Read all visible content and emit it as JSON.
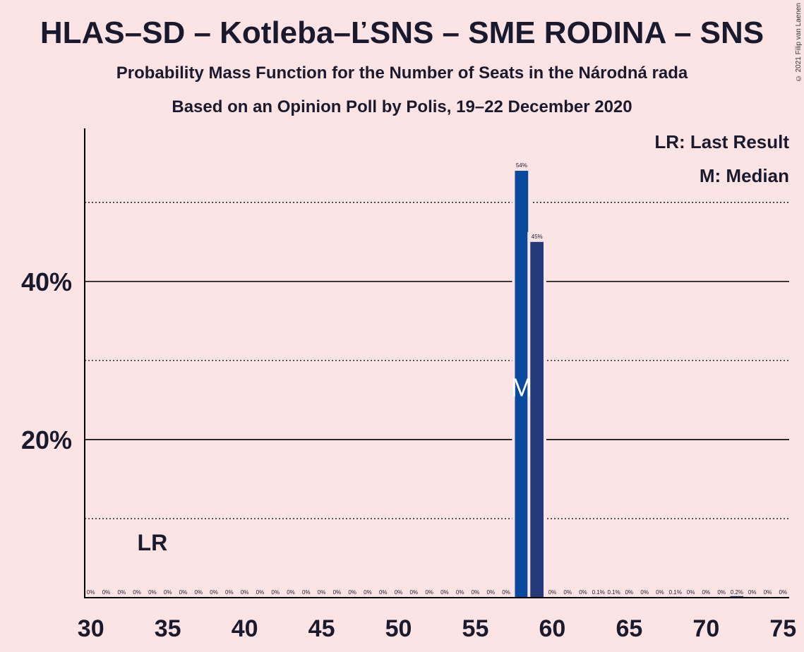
{
  "header": {
    "title": "HLAS–SD – Kotleba–ĽSNS – SME RODINA – SNS",
    "subtitle": "Probability Mass Function for the Number of Seats in the Národná rada",
    "subtitle2": "Based on an Opinion Poll by Polis, 19–22 December 2020",
    "copyright": "© 2021 Filip van Laenen"
  },
  "legend": {
    "lr": "LR: Last Result",
    "m": "M: Median"
  },
  "colors": {
    "background": "#fde4e4",
    "bar_primary": "#0a4a9e",
    "bar_secondary": "#253a78",
    "text": "#1a1a2e"
  },
  "chart_data": {
    "type": "bar",
    "x_label_ticks": [
      30,
      35,
      40,
      45,
      50,
      55,
      60,
      65,
      70,
      75
    ],
    "y_ticks": [
      {
        "value": 20,
        "label": "20%"
      },
      {
        "value": 40,
        "label": "40%"
      }
    ],
    "y_minor_gridlines": [
      10,
      30,
      50
    ],
    "ylim": [
      0,
      59
    ],
    "xlim": [
      29.6,
      75.4
    ],
    "last_result_seat": 34,
    "last_result_label": "LR",
    "median_seat": 58,
    "median_label": "M",
    "bars": [
      {
        "x": 30,
        "value": 0,
        "label": "0%"
      },
      {
        "x": 31,
        "value": 0,
        "label": "0%"
      },
      {
        "x": 32,
        "value": 0,
        "label": "0%"
      },
      {
        "x": 33,
        "value": 0,
        "label": "0%"
      },
      {
        "x": 34,
        "value": 0,
        "label": "0%"
      },
      {
        "x": 35,
        "value": 0,
        "label": "0%"
      },
      {
        "x": 36,
        "value": 0,
        "label": "0%"
      },
      {
        "x": 37,
        "value": 0,
        "label": "0%"
      },
      {
        "x": 38,
        "value": 0,
        "label": "0%"
      },
      {
        "x": 39,
        "value": 0,
        "label": "0%"
      },
      {
        "x": 40,
        "value": 0,
        "label": "0%"
      },
      {
        "x": 41,
        "value": 0,
        "label": "0%"
      },
      {
        "x": 42,
        "value": 0,
        "label": "0%"
      },
      {
        "x": 43,
        "value": 0,
        "label": "0%"
      },
      {
        "x": 44,
        "value": 0,
        "label": "0%"
      },
      {
        "x": 45,
        "value": 0,
        "label": "0%"
      },
      {
        "x": 46,
        "value": 0,
        "label": "0%"
      },
      {
        "x": 47,
        "value": 0,
        "label": "0%"
      },
      {
        "x": 48,
        "value": 0,
        "label": "0%"
      },
      {
        "x": 49,
        "value": 0,
        "label": "0%"
      },
      {
        "x": 50,
        "value": 0,
        "label": "0%"
      },
      {
        "x": 51,
        "value": 0,
        "label": "0%"
      },
      {
        "x": 52,
        "value": 0,
        "label": "0%"
      },
      {
        "x": 53,
        "value": 0,
        "label": "0%"
      },
      {
        "x": 54,
        "value": 0,
        "label": "0%"
      },
      {
        "x": 55,
        "value": 0,
        "label": "0%"
      },
      {
        "x": 56,
        "value": 0,
        "label": "0%"
      },
      {
        "x": 57,
        "value": 0,
        "label": "0%"
      },
      {
        "x": 58,
        "value": 54,
        "label": "54%"
      },
      {
        "x": 59,
        "value": 45,
        "label": "45%"
      },
      {
        "x": 60,
        "value": 0,
        "label": "0%"
      },
      {
        "x": 61,
        "value": 0,
        "label": "0%"
      },
      {
        "x": 62,
        "value": 0,
        "label": "0%"
      },
      {
        "x": 63,
        "value": 0.1,
        "label": "0.1%"
      },
      {
        "x": 64,
        "value": 0.1,
        "label": "0.1%"
      },
      {
        "x": 65,
        "value": 0,
        "label": "0%"
      },
      {
        "x": 66,
        "value": 0,
        "label": "0%"
      },
      {
        "x": 67,
        "value": 0,
        "label": "0%"
      },
      {
        "x": 68,
        "value": 0.1,
        "label": "0.1%"
      },
      {
        "x": 69,
        "value": 0,
        "label": "0%"
      },
      {
        "x": 70,
        "value": 0,
        "label": "0%"
      },
      {
        "x": 71,
        "value": 0,
        "label": "0%"
      },
      {
        "x": 72,
        "value": 0.2,
        "label": "0.2%"
      },
      {
        "x": 73,
        "value": 0,
        "label": "0%"
      },
      {
        "x": 74,
        "value": 0,
        "label": "0%"
      },
      {
        "x": 75,
        "value": 0,
        "label": "0%"
      }
    ]
  }
}
